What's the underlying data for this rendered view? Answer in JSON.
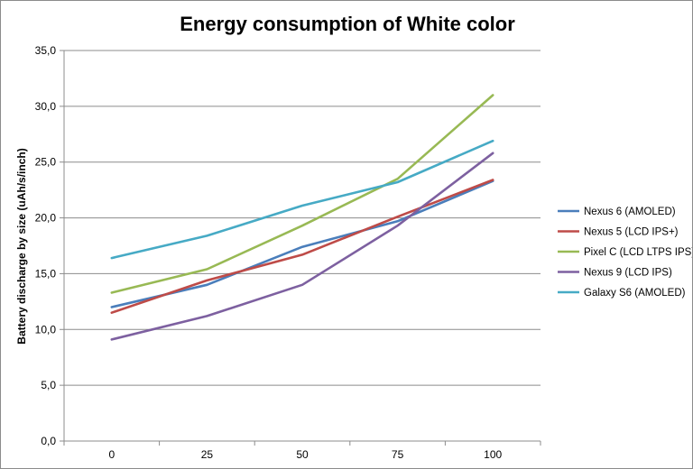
{
  "chart_data": {
    "type": "line",
    "title": "Energy consumption of White color",
    "xlabel": "",
    "ylabel": "Battery discharge by size (uAh/s/inch)",
    "x": [
      "0",
      "25",
      "50",
      "75",
      "100"
    ],
    "ylim": [
      0,
      35
    ],
    "yticks": [
      "0,0",
      "5,0",
      "10,0",
      "15,0",
      "20,0",
      "25,0",
      "30,0",
      "35,0"
    ],
    "grid": "horizontal",
    "legend_position": "right",
    "series": [
      {
        "name": "Nexus 6 (AMOLED)",
        "color": "#4a7ebb",
        "values": [
          12.0,
          14.0,
          17.4,
          19.7,
          23.3
        ]
      },
      {
        "name": "Nexus 5 (LCD IPS+)",
        "color": "#be4b48",
        "values": [
          11.5,
          14.4,
          16.7,
          20.1,
          23.4
        ]
      },
      {
        "name": "Pixel C (LCD LTPS IPS)",
        "color": "#98b954",
        "values": [
          13.3,
          15.4,
          19.3,
          23.5,
          31.0
        ]
      },
      {
        "name": "Nexus 9 (LCD IPS)",
        "color": "#7d60a0",
        "values": [
          9.1,
          11.2,
          14.0,
          19.3,
          25.8
        ]
      },
      {
        "name": "Galaxy S6 (AMOLED)",
        "color": "#46aac5",
        "values": [
          16.4,
          18.4,
          21.1,
          23.2,
          26.9
        ]
      }
    ]
  }
}
